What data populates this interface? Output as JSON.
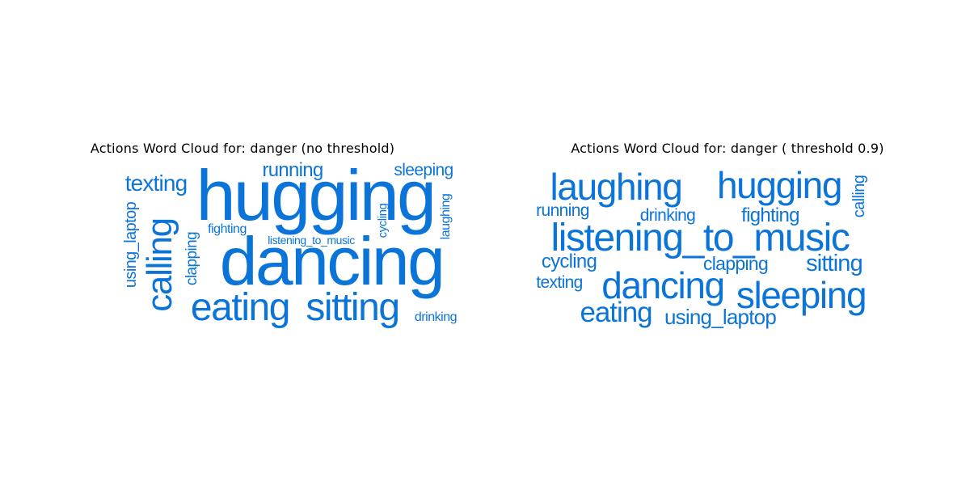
{
  "chart_data": [
    {
      "type": "wordcloud",
      "title": "Actions Word Cloud for: danger (no threshold)",
      "color": "#0b74d9",
      "words": [
        {
          "text": "hugging"
        },
        {
          "text": "dancing"
        },
        {
          "text": "eating"
        },
        {
          "text": "sitting"
        },
        {
          "text": "calling"
        },
        {
          "text": "texting"
        },
        {
          "text": "running"
        },
        {
          "text": "sleeping"
        },
        {
          "text": "using_laptop"
        },
        {
          "text": "clapping"
        },
        {
          "text": "fighting"
        },
        {
          "text": "listening_to_music"
        },
        {
          "text": "cycling"
        },
        {
          "text": "laughing"
        },
        {
          "text": "drinking"
        }
      ]
    },
    {
      "type": "wordcloud",
      "title": "Actions Word Cloud for: danger ( threshold 0.9)",
      "color": "#0b74d9",
      "words": [
        {
          "text": "laughing"
        },
        {
          "text": "hugging"
        },
        {
          "text": "calling"
        },
        {
          "text": "running"
        },
        {
          "text": "drinking"
        },
        {
          "text": "fighting"
        },
        {
          "text": "listening_to_music"
        },
        {
          "text": "cycling"
        },
        {
          "text": "clapping"
        },
        {
          "text": "sitting"
        },
        {
          "text": "texting"
        },
        {
          "text": "dancing"
        },
        {
          "text": "sleeping"
        },
        {
          "text": "eating"
        },
        {
          "text": "using_laptop"
        }
      ]
    }
  ]
}
